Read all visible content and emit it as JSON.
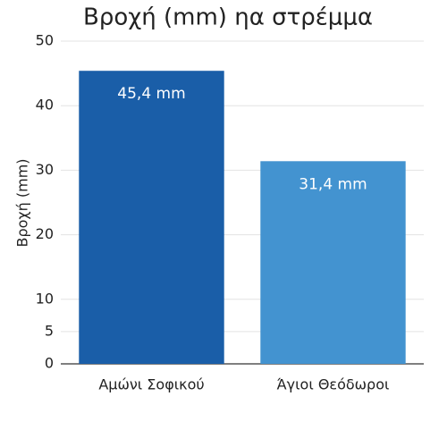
{
  "chart_data": {
    "type": "bar",
    "title": "Βροχή (mm) ηα στρέμμα",
    "y_label": "Βροχή (mm)",
    "categories": [
      "Αμώνι Σοφικού",
      "Άγιοι Θεόδωροι"
    ],
    "values": [
      45.4,
      31.4
    ],
    "value_labels": [
      "45,4 mm",
      "31,4 mm"
    ],
    "colors": [
      "#1a5ea8",
      "#4393d0"
    ],
    "ylim": [
      0,
      50
    ],
    "yticks": [
      0,
      5,
      10,
      20,
      30,
      40,
      50
    ],
    "grid": true
  }
}
